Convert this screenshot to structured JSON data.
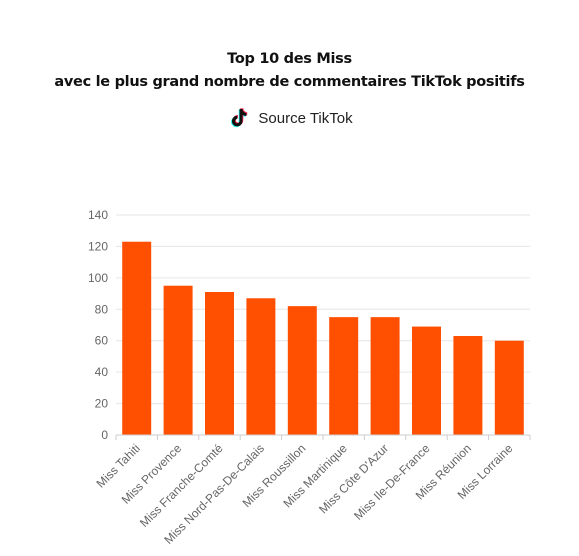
{
  "header": {
    "title_line1": "Top 10 des Miss",
    "title_line2": "avec le plus grand nombre de commentaires TikTok positifs",
    "source_label": "Source TikTok",
    "source_icon": "tiktok-icon"
  },
  "colors": {
    "bar": "#ff4f00",
    "grid": "#e6e6e6",
    "axis": "#cccccc"
  },
  "chart_data": {
    "type": "bar",
    "title": "Top 10 des Miss avec le plus grand nombre de commentaires TikTok positifs",
    "subtitle": "Source TikTok",
    "categories": [
      "Miss Tahiti",
      "Miss Provence",
      "Miss Franche-Comté",
      "Miss Nord-Pas-De-Calais",
      "Miss Roussillon",
      "Miss Martinique",
      "Miss Côte D'Azur",
      "Miss Ile-De-France",
      "Miss Réunion",
      "Miss Lorraine"
    ],
    "values": [
      123,
      95,
      91,
      87,
      82,
      75,
      75,
      69,
      63,
      60
    ],
    "ylim": [
      0,
      140
    ],
    "yticks": [
      0,
      20,
      40,
      60,
      80,
      100,
      120,
      140
    ],
    "grid": true,
    "legend": "none",
    "xlabel": "",
    "ylabel": ""
  }
}
